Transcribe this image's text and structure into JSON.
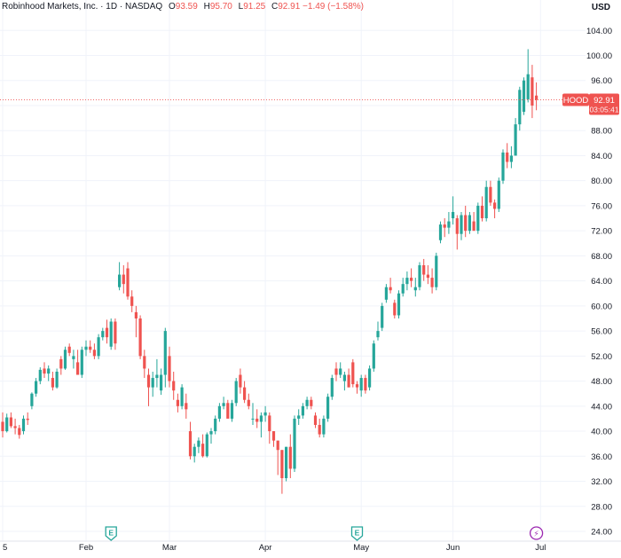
{
  "legend": {
    "name": "Robinhood Markets, Inc.",
    "interval": "1D",
    "exchange": "NASDAQ",
    "open_label": "O",
    "open": "93.59",
    "high_label": "H",
    "high": "95.70",
    "low_label": "L",
    "low": "91.25",
    "close_label": "C",
    "close": "92.91",
    "change": "−1.49 (−1.58%)"
  },
  "currency": "USD",
  "price_tag": {
    "symbol": "HOOD",
    "price": "92.91",
    "countdown": "03:05:41"
  },
  "colors": {
    "up": "#26a69a",
    "down": "#ef5350",
    "grid": "#f0f3fa",
    "axis_text": "#131722"
  },
  "events": [
    {
      "icon": "earnings-icon",
      "letter": "E",
      "date_index": 26
    },
    {
      "icon": "earnings-icon",
      "letter": "E",
      "date_index": 85
    },
    {
      "icon": "dividend-split-icon",
      "letter": "⚡",
      "date_index": 128
    }
  ],
  "chart_data": {
    "type": "candlestick",
    "ylim": [
      22,
      107
    ],
    "y_ticks": [
      24,
      28,
      32,
      36,
      40,
      44,
      48,
      52,
      56,
      60,
      64,
      68,
      72,
      76,
      80,
      84,
      88,
      92,
      96,
      100,
      104
    ],
    "x_ticks": [
      {
        "label": "5",
        "index": 0
      },
      {
        "label": "Feb",
        "index": 20
      },
      {
        "label": "Mar",
        "index": 40
      },
      {
        "label": "Apr",
        "index": 63
      },
      {
        "label": "May",
        "index": 86
      },
      {
        "label": "Jun",
        "index": 108
      },
      {
        "label": "Jul",
        "index": 129
      }
    ],
    "candles": [
      [
        41.5,
        43.0,
        39.0,
        40.0
      ],
      [
        40.0,
        42.8,
        39.8,
        42.2
      ],
      [
        42.2,
        43.0,
        40.5,
        40.8
      ],
      [
        40.8,
        42.0,
        39.5,
        40.5
      ],
      [
        40.5,
        41.0,
        38.8,
        39.4
      ],
      [
        40.0,
        42.5,
        39.5,
        42.0
      ],
      [
        42.0,
        43.0,
        41.0,
        41.8
      ],
      [
        44.0,
        46.2,
        43.5,
        46.0
      ],
      [
        46.0,
        48.5,
        45.5,
        48.0
      ],
      [
        48.0,
        50.2,
        47.5,
        49.8
      ],
      [
        50.0,
        51.0,
        48.5,
        49.2
      ],
      [
        49.2,
        50.5,
        48.0,
        50.0
      ],
      [
        48.5,
        49.5,
        46.5,
        47.0
      ],
      [
        47.0,
        50.0,
        46.8,
        49.5
      ],
      [
        51.5,
        52.0,
        49.0,
        50.0
      ],
      [
        50.0,
        53.5,
        49.8,
        53.0
      ],
      [
        53.5,
        54.0,
        52.0,
        52.5
      ],
      [
        51.5,
        53.0,
        50.0,
        52.0
      ],
      [
        51.0,
        53.0,
        49.0,
        49.0
      ],
      [
        49.0,
        53.5,
        48.5,
        53.0
      ],
      [
        53.0,
        54.5,
        52.0,
        53.5
      ],
      [
        53.5,
        54.5,
        52.5,
        53.0
      ],
      [
        53.0,
        54.0,
        51.5,
        52.0
      ],
      [
        52.0,
        55.5,
        51.5,
        55.0
      ],
      [
        55.0,
        56.5,
        54.5,
        56.0
      ],
      [
        56.5,
        57.8,
        54.0,
        55.0
      ],
      [
        53.5,
        58.0,
        53.0,
        57.5
      ],
      [
        57.5,
        58.0,
        53.0,
        54.0
      ],
      [
        63.0,
        67.0,
        62.5,
        65.0
      ],
      [
        65.0,
        66.5,
        62.0,
        63.5
      ],
      [
        66.0,
        67.0,
        61.0,
        61.5
      ],
      [
        61.5,
        62.5,
        59.0,
        60.0
      ],
      [
        59.0,
        60.0,
        55.0,
        58.0
      ],
      [
        58.0,
        58.5,
        51.5,
        52.0
      ],
      [
        52.0,
        53.0,
        48.5,
        50.0
      ],
      [
        49.0,
        50.0,
        44.0,
        47.0
      ],
      [
        47.0,
        49.5,
        45.5,
        48.5
      ],
      [
        48.5,
        51.5,
        47.0,
        49.0
      ],
      [
        46.5,
        50.0,
        45.8,
        49.0
      ],
      [
        49.0,
        56.5,
        47.0,
        56.0
      ],
      [
        52.0,
        53.5,
        47.0,
        48.0
      ],
      [
        48.0,
        49.5,
        45.0,
        46.5
      ],
      [
        45.0,
        46.0,
        43.0,
        44.0
      ],
      [
        44.0,
        47.5,
        43.5,
        47.0
      ],
      [
        44.5,
        46.0,
        42.0,
        43.5
      ],
      [
        40.0,
        41.5,
        35.5,
        36.0
      ],
      [
        36.0,
        38.0,
        35.0,
        37.5
      ],
      [
        37.5,
        39.0,
        36.5,
        38.5
      ],
      [
        38.0,
        39.5,
        35.8,
        36.0
      ],
      [
        36.0,
        39.8,
        35.8,
        39.5
      ],
      [
        39.5,
        40.5,
        38.0,
        40.0
      ],
      [
        40.0,
        42.5,
        39.5,
        42.0
      ],
      [
        42.0,
        44.5,
        41.5,
        44.0
      ],
      [
        44.0,
        45.5,
        43.5,
        44.5
      ],
      [
        44.5,
        45.0,
        42.5,
        42.0
      ],
      [
        42.0,
        45.0,
        41.5,
        44.5
      ],
      [
        44.5,
        48.5,
        44.0,
        48.0
      ],
      [
        49.0,
        50.0,
        46.0,
        47.0
      ],
      [
        47.0,
        48.0,
        44.5,
        45.0
      ],
      [
        45.0,
        46.0,
        43.5,
        44.0
      ],
      [
        42.0,
        44.5,
        41.0,
        42.0
      ],
      [
        42.0,
        43.5,
        40.5,
        41.5
      ],
      [
        41.5,
        43.0,
        39.0,
        42.5
      ],
      [
        42.5,
        44.0,
        41.5,
        43.0
      ],
      [
        42.5,
        43.0,
        38.0,
        40.0
      ],
      [
        40.0,
        40.0,
        37.5,
        38.5
      ],
      [
        38.5,
        38.5,
        33.0,
        37.0
      ],
      [
        37.0,
        37.0,
        30.0,
        32.5
      ],
      [
        32.5,
        37.5,
        32.0,
        37.5
      ],
      [
        37.5,
        39.5,
        32.5,
        34.0
      ],
      [
        34.0,
        42.5,
        33.5,
        42.0
      ],
      [
        42.0,
        43.5,
        41.0,
        42.5
      ],
      [
        42.5,
        44.5,
        42.0,
        44.0
      ],
      [
        44.0,
        45.5,
        43.5,
        45.0
      ],
      [
        45.0,
        45.5,
        43.5,
        44.0
      ],
      [
        42.5,
        43.0,
        40.5,
        41.0
      ],
      [
        41.0,
        42.0,
        39.0,
        39.5
      ],
      [
        39.5,
        42.5,
        39.0,
        42.0
      ],
      [
        42.0,
        46.0,
        41.5,
        45.5
      ],
      [
        45.5,
        49.0,
        45.0,
        48.5
      ],
      [
        50.0,
        51.0,
        48.0,
        49.0
      ],
      [
        49.0,
        51.0,
        48.5,
        50.0
      ],
      [
        48.0,
        49.5,
        46.5,
        49.0
      ],
      [
        49.0,
        50.0,
        47.0,
        47.0
      ],
      [
        51.0,
        51.5,
        47.0,
        47.5
      ],
      [
        47.5,
        48.0,
        46.0,
        47.0
      ],
      [
        46.5,
        49.0,
        45.5,
        48.5
      ],
      [
        48.5,
        49.0,
        46.0,
        46.5
      ],
      [
        47.0,
        50.5,
        46.5,
        50.0
      ],
      [
        50.0,
        54.5,
        49.5,
        54.0
      ],
      [
        55.0,
        57.5,
        54.5,
        56.0
      ],
      [
        56.5,
        60.5,
        56.0,
        60.0
      ],
      [
        61.0,
        63.5,
        60.5,
        63.0
      ],
      [
        63.0,
        64.5,
        62.0,
        62.5
      ],
      [
        60.5,
        61.0,
        58.0,
        58.5
      ],
      [
        58.5,
        62.5,
        58.0,
        62.0
      ],
      [
        62.0,
        64.5,
        61.5,
        63.5
      ],
      [
        63.5,
        65.5,
        62.5,
        64.5
      ],
      [
        64.5,
        66.0,
        63.0,
        64.0
      ],
      [
        62.5,
        64.5,
        61.5,
        63.0
      ],
      [
        63.0,
        67.0,
        62.5,
        66.5
      ],
      [
        66.5,
        67.5,
        64.0,
        65.0
      ],
      [
        65.0,
        66.5,
        63.5,
        64.5
      ],
      [
        64.5,
        66.0,
        62.0,
        63.0
      ],
      [
        63.0,
        68.5,
        62.5,
        68.0
      ],
      [
        70.5,
        73.5,
        70.0,
        73.0
      ],
      [
        73.0,
        74.0,
        71.0,
        72.5
      ],
      [
        72.5,
        75.0,
        71.5,
        73.5
      ],
      [
        74.0,
        77.5,
        73.0,
        75.0
      ],
      [
        74.0,
        74.5,
        69.0,
        71.5
      ],
      [
        71.5,
        75.0,
        70.5,
        74.5
      ],
      [
        74.5,
        76.0,
        71.0,
        72.0
      ],
      [
        72.0,
        75.0,
        71.5,
        74.5
      ],
      [
        73.5,
        75.0,
        72.0,
        72.0
      ],
      [
        72.0,
        76.5,
        71.5,
        76.0
      ],
      [
        76.0,
        77.5,
        73.5,
        74.0
      ],
      [
        74.0,
        80.0,
        73.5,
        79.0
      ],
      [
        79.0,
        80.0,
        76.0,
        76.5
      ],
      [
        76.5,
        77.0,
        74.0,
        75.5
      ],
      [
        75.5,
        80.5,
        75.0,
        80.0
      ],
      [
        80.0,
        85.0,
        79.5,
        84.5
      ],
      [
        84.5,
        86.0,
        82.0,
        83.0
      ],
      [
        83.0,
        85.5,
        82.0,
        84.0
      ],
      [
        84.0,
        90.0,
        84.0,
        89.0
      ],
      [
        89.0,
        95.0,
        88.0,
        94.5
      ],
      [
        91.0,
        96.5,
        90.5,
        96.0
      ],
      [
        93.0,
        101.0,
        92.5,
        97.0
      ],
      [
        96.5,
        98.5,
        90.0,
        92.0
      ],
      [
        93.59,
        95.7,
        91.25,
        92.91
      ]
    ]
  }
}
